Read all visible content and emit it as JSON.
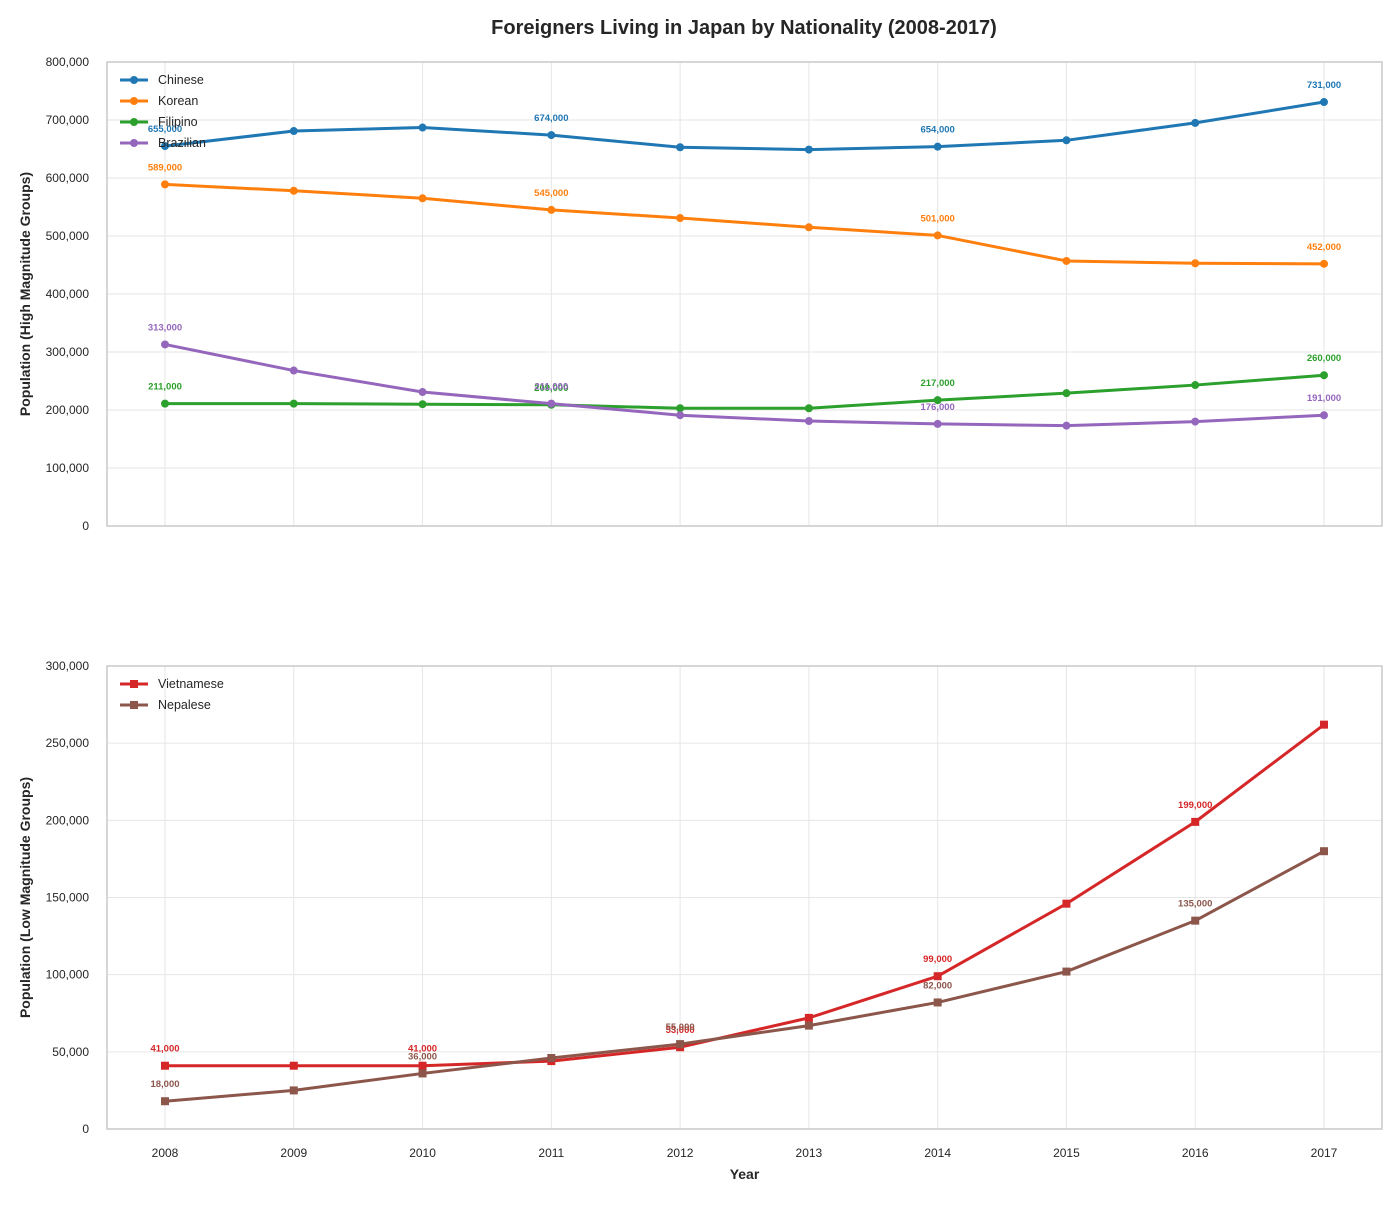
{
  "title": "Foreigners Living in Japan by Nationality (2008-2017)",
  "colors": {
    "grid": "#e6e6e6",
    "spine": "#c8c8c8",
    "text": "#262626"
  },
  "chart_data": [
    {
      "type": "line",
      "x": [
        2008,
        2009,
        2010,
        2011,
        2012,
        2013,
        2014,
        2015,
        2016,
        2017
      ],
      "xlabel": "",
      "ylabel": "Population (High Magnitude Groups)",
      "ylim": [
        0,
        800000
      ],
      "yticks": [
        0,
        100000,
        200000,
        300000,
        400000,
        500000,
        600000,
        700000,
        800000
      ],
      "grid": true,
      "legend_position": "top-left",
      "marker": "circle",
      "series": [
        {
          "name": "Chinese",
          "color": "#1f77b4",
          "values": [
            655000,
            681000,
            687000,
            674000,
            653000,
            649000,
            654000,
            665000,
            695000,
            731000
          ],
          "labels": [
            {
              "index": 0,
              "text": "655,000"
            },
            {
              "index": 3,
              "text": "674,000"
            },
            {
              "index": 6,
              "text": "654,000"
            },
            {
              "index": 9,
              "text": "731,000"
            }
          ]
        },
        {
          "name": "Korean",
          "color": "#ff7f0e",
          "values": [
            589000,
            578000,
            565000,
            545000,
            531000,
            515000,
            501000,
            457000,
            453000,
            452000
          ],
          "labels": [
            {
              "index": 0,
              "text": "589,000"
            },
            {
              "index": 3,
              "text": "545,000"
            },
            {
              "index": 6,
              "text": "501,000"
            },
            {
              "index": 9,
              "text": "452,000"
            }
          ]
        },
        {
          "name": "Filipino",
          "color": "#2ca02c",
          "values": [
            211000,
            211000,
            210000,
            209000,
            203000,
            203000,
            217000,
            229000,
            243000,
            260000
          ],
          "labels": [
            {
              "index": 0,
              "text": "211,000"
            },
            {
              "index": 3,
              "text": "209,000"
            },
            {
              "index": 6,
              "text": "217,000"
            },
            {
              "index": 9,
              "text": "260,000"
            }
          ]
        },
        {
          "name": "Brazilian",
          "color": "#9467bd",
          "values": [
            313000,
            268000,
            231000,
            211000,
            191000,
            181000,
            176000,
            173000,
            180000,
            191000
          ],
          "labels": [
            {
              "index": 0,
              "text": "313,000"
            },
            {
              "index": 3,
              "text": "211,000"
            },
            {
              "index": 6,
              "text": "176,000"
            },
            {
              "index": 9,
              "text": "191,000"
            }
          ]
        }
      ]
    },
    {
      "type": "line",
      "x": [
        2008,
        2009,
        2010,
        2011,
        2012,
        2013,
        2014,
        2015,
        2016,
        2017
      ],
      "xlabel": "Year",
      "ylabel": "Population (Low Magnitude Groups)",
      "ylim": [
        0,
        300000
      ],
      "yticks": [
        0,
        50000,
        100000,
        150000,
        200000,
        250000,
        300000
      ],
      "grid": true,
      "legend_position": "top-left",
      "marker": "square",
      "series": [
        {
          "name": "Vietnamese",
          "color": "#d62728",
          "values": [
            41000,
            41000,
            41000,
            44000,
            53000,
            72000,
            99000,
            146000,
            199000,
            262000
          ],
          "labels": [
            {
              "index": 0,
              "text": "41,000"
            },
            {
              "index": 2,
              "text": "41,000"
            },
            {
              "index": 4,
              "text": "53,000"
            },
            {
              "index": 6,
              "text": "99,000"
            },
            {
              "index": 8,
              "text": "199,000"
            }
          ]
        },
        {
          "name": "Nepalese",
          "color": "#8c564b",
          "values": [
            18000,
            25000,
            36000,
            46000,
            55000,
            67000,
            82000,
            102000,
            135000,
            180000
          ],
          "labels": [
            {
              "index": 0,
              "text": "18,000"
            },
            {
              "index": 2,
              "text": "36,000"
            },
            {
              "index": 4,
              "text": "55,000"
            },
            {
              "index": 6,
              "text": "82,000"
            },
            {
              "index": 8,
              "text": "135,000"
            }
          ]
        }
      ]
    }
  ]
}
